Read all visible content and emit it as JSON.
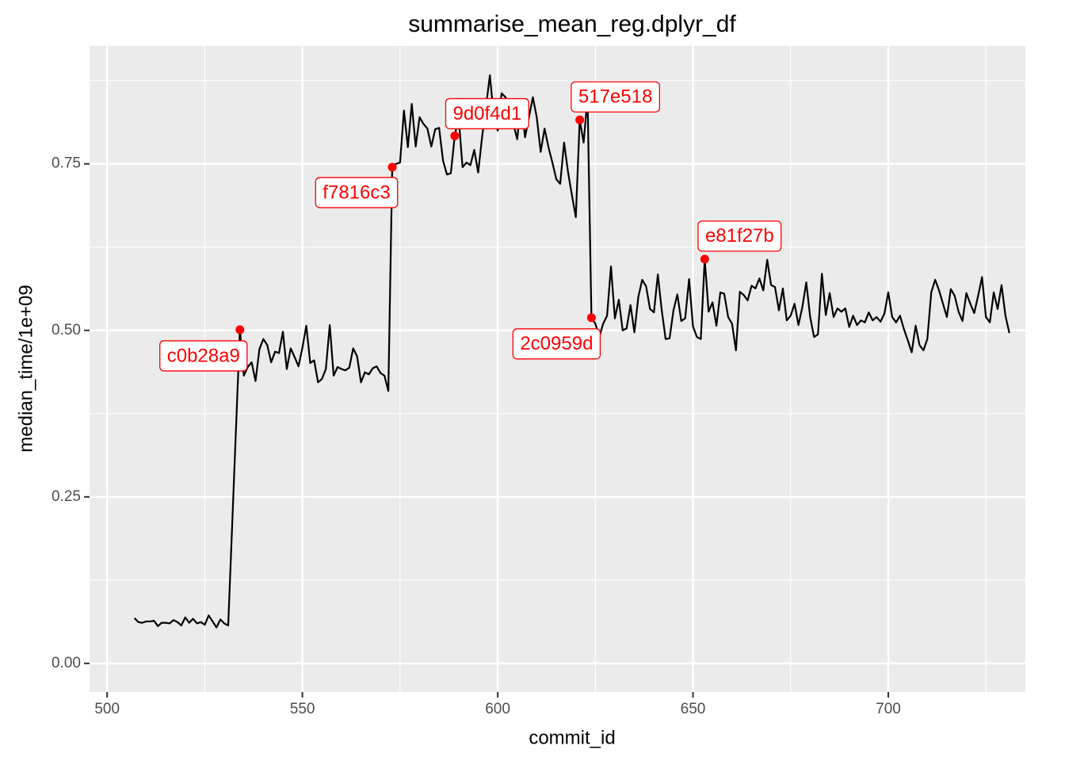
{
  "chart_data": {
    "type": "line",
    "title": "summarise_mean_reg.dplyr_df",
    "x_label": "commit_id",
    "y_label": "median_time/1e+09",
    "xlim": [
      495.5,
      735.1
    ],
    "ylim": [
      -0.043,
      0.927
    ],
    "xticks": [
      500,
      550,
      600,
      650,
      700
    ],
    "yticks": [
      {
        "value": 0,
        "label": "0.00"
      },
      {
        "value": 0.25,
        "label": "0.25"
      },
      {
        "value": 0.5,
        "label": "0.50"
      },
      {
        "value": 0.75,
        "label": "0.75"
      }
    ],
    "x_minor_ticks": [
      525,
      575,
      625,
      675,
      725
    ],
    "y_minor_ticks": [
      0.125,
      0.375,
      0.625,
      0.875
    ],
    "grid": true,
    "series": [
      {
        "color": "#000000",
        "x": [
          507,
          508,
          509,
          510,
          511,
          512,
          513,
          514,
          515,
          516,
          517,
          518,
          519,
          520,
          521,
          522,
          523,
          524,
          525,
          526,
          527,
          528,
          529,
          530,
          531,
          532,
          533,
          534,
          535,
          536,
          537,
          538,
          539,
          540,
          541,
          542,
          543,
          544,
          545,
          546,
          547,
          548,
          549,
          550,
          551,
          552,
          553,
          554,
          555,
          556,
          557,
          558,
          559,
          560,
          561,
          562,
          563,
          564,
          565,
          566,
          567,
          568,
          569,
          570,
          571,
          572,
          573,
          574,
          575,
          576,
          577,
          578,
          579,
          580,
          581,
          582,
          583,
          584,
          585,
          586,
          587,
          588,
          589,
          590,
          591,
          592,
          593,
          594,
          595,
          596,
          597,
          598,
          599,
          600,
          601,
          602,
          603,
          604,
          605,
          606,
          607,
          608,
          609,
          610,
          611,
          612,
          613,
          614,
          615,
          616,
          617,
          618,
          619,
          620,
          621,
          622,
          623,
          624,
          625,
          626,
          627,
          628,
          629,
          630,
          631,
          632,
          633,
          634,
          635,
          636,
          637,
          638,
          639,
          640,
          641,
          642,
          643,
          644,
          645,
          646,
          647,
          648,
          649,
          650,
          651,
          652,
          653,
          654,
          655,
          656,
          657,
          658,
          659,
          660,
          661,
          662,
          663,
          664,
          665,
          666,
          667,
          668,
          669,
          670,
          671,
          672,
          673,
          674,
          675,
          676,
          677,
          678,
          679,
          680,
          681,
          682,
          683,
          684,
          685,
          686,
          687,
          688,
          689,
          690,
          691,
          692,
          693,
          694,
          695,
          696,
          697,
          698,
          699,
          700,
          701,
          702,
          703,
          704,
          705,
          706,
          707,
          708,
          709,
          710,
          711,
          712,
          713,
          714,
          715,
          716,
          717,
          718,
          719,
          720,
          721,
          722,
          723,
          724,
          725,
          726,
          727,
          728,
          729,
          730,
          731
        ],
        "values": [
          0.068,
          0.062,
          0.061,
          0.063,
          0.063,
          0.064,
          0.056,
          0.061,
          0.061,
          0.06,
          0.065,
          0.062,
          0.057,
          0.069,
          0.061,
          0.067,
          0.06,
          0.062,
          0.058,
          0.072,
          0.063,
          0.054,
          0.066,
          0.06,
          0.057,
          0.205,
          0.353,
          0.501,
          0.432,
          0.445,
          0.452,
          0.424,
          0.472,
          0.487,
          0.478,
          0.452,
          0.468,
          0.466,
          0.498,
          0.442,
          0.473,
          0.46,
          0.446,
          0.474,
          0.507,
          0.451,
          0.455,
          0.422,
          0.427,
          0.442,
          0.508,
          0.432,
          0.445,
          0.442,
          0.44,
          0.444,
          0.473,
          0.461,
          0.422,
          0.437,
          0.434,
          0.443,
          0.446,
          0.436,
          0.432,
          0.409,
          0.745,
          0.75,
          0.752,
          0.83,
          0.775,
          0.84,
          0.776,
          0.82,
          0.81,
          0.803,
          0.776,
          0.802,
          0.804,
          0.755,
          0.734,
          0.736,
          0.792,
          0.82,
          0.745,
          0.752,
          0.748,
          0.771,
          0.737,
          0.79,
          0.836,
          0.883,
          0.82,
          0.8,
          0.856,
          0.85,
          0.835,
          0.81,
          0.787,
          0.845,
          0.79,
          0.82,
          0.85,
          0.82,
          0.768,
          0.803,
          0.775,
          0.752,
          0.727,
          0.72,
          0.782,
          0.738,
          0.703,
          0.67,
          0.816,
          0.782,
          0.85,
          0.519,
          0.51,
          0.49,
          0.51,
          0.522,
          0.596,
          0.518,
          0.546,
          0.5,
          0.503,
          0.538,
          0.497,
          0.55,
          0.576,
          0.566,
          0.532,
          0.527,
          0.584,
          0.53,
          0.487,
          0.488,
          0.53,
          0.554,
          0.514,
          0.518,
          0.577,
          0.506,
          0.49,
          0.487,
          0.607,
          0.528,
          0.542,
          0.507,
          0.557,
          0.555,
          0.52,
          0.51,
          0.47,
          0.558,
          0.553,
          0.545,
          0.567,
          0.563,
          0.578,
          0.56,
          0.606,
          0.568,
          0.565,
          0.53,
          0.563,
          0.515,
          0.522,
          0.54,
          0.508,
          0.535,
          0.572,
          0.52,
          0.49,
          0.494,
          0.585,
          0.523,
          0.556,
          0.52,
          0.533,
          0.528,
          0.533,
          0.505,
          0.522,
          0.508,
          0.515,
          0.512,
          0.527,
          0.515,
          0.52,
          0.513,
          0.525,
          0.557,
          0.52,
          0.512,
          0.522,
          0.502,
          0.485,
          0.467,
          0.507,
          0.478,
          0.47,
          0.487,
          0.557,
          0.576,
          0.56,
          0.54,
          0.52,
          0.562,
          0.552,
          0.528,
          0.514,
          0.556,
          0.54,
          0.526,
          0.552,
          0.58,
          0.52,
          0.512,
          0.557,
          0.532,
          0.568,
          0.522,
          0.496
        ]
      }
    ],
    "annotations": {
      "color": "#ff0000",
      "x": [
        534,
        573,
        589,
        621,
        624,
        653
      ],
      "values": [
        0.501,
        0.745,
        0.792,
        0.816,
        0.519,
        0.607
      ],
      "labels": [
        "c0b28a9",
        "f7816c3",
        "9d0f4d1",
        "517e518",
        "2c0959d",
        "e81f27b"
      ]
    }
  }
}
